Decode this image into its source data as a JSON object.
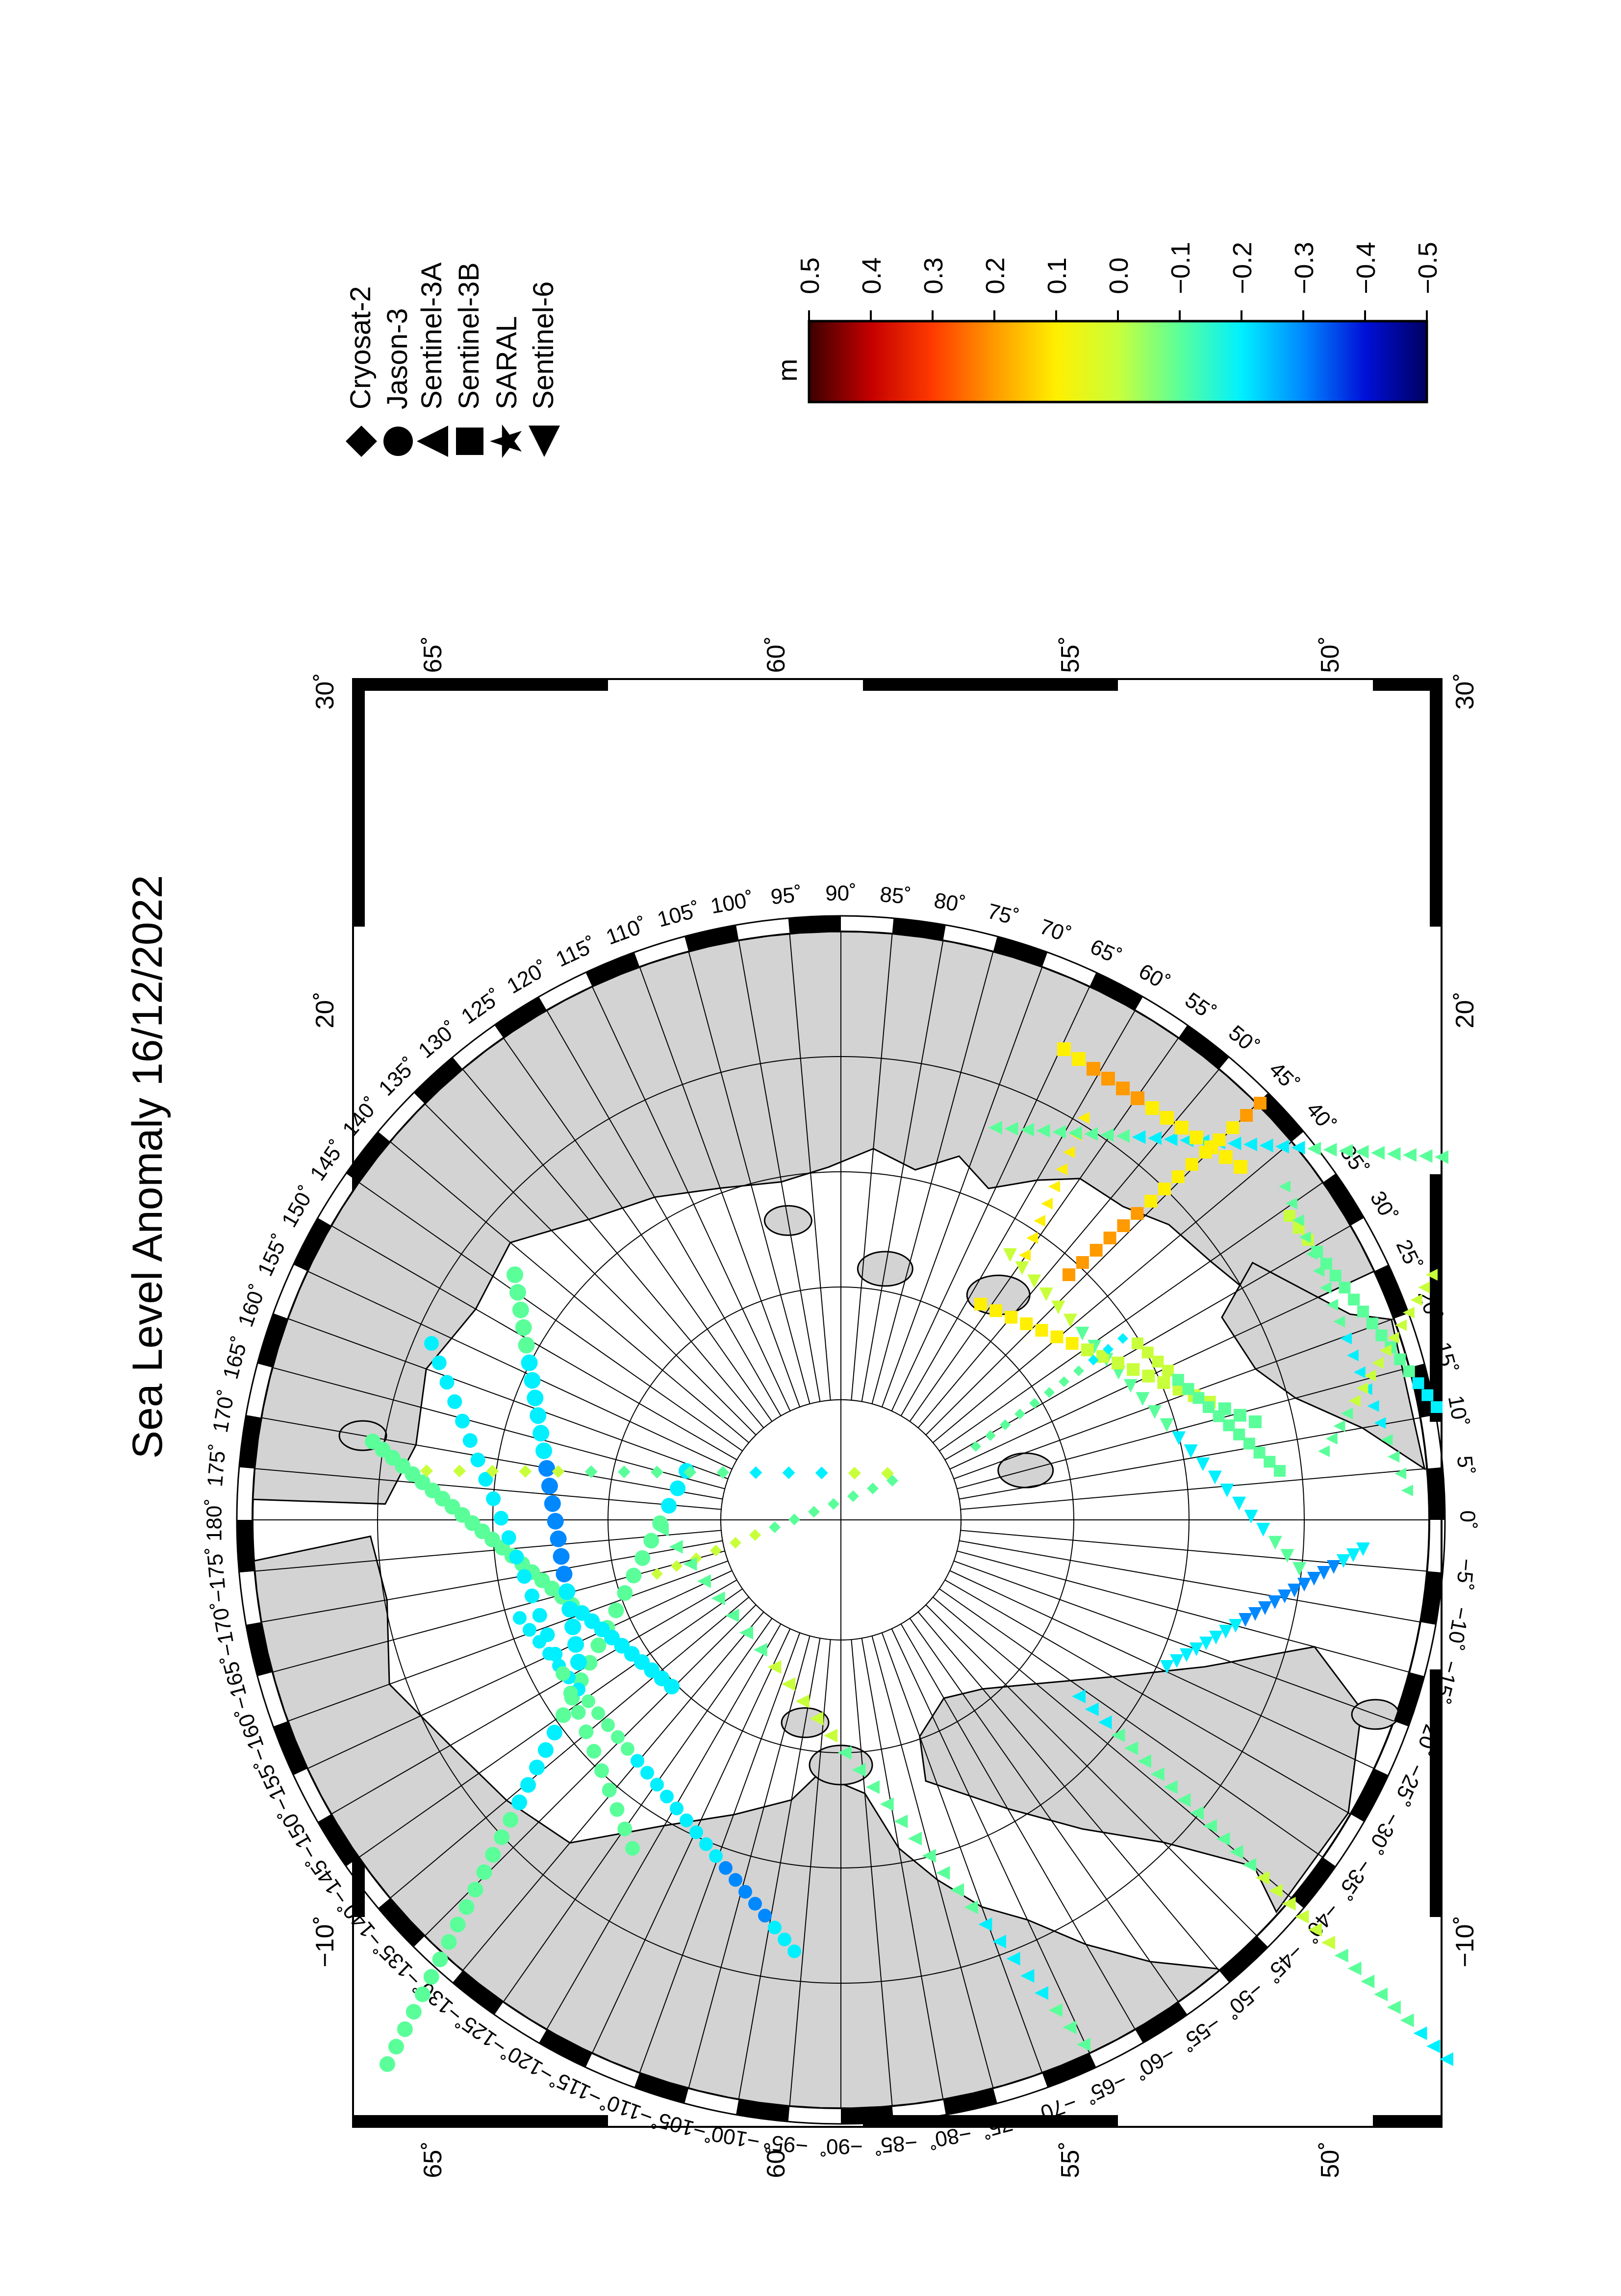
{
  "title": "Sea Level Anomaly 16/12/2022",
  "colors": {
    "land": "#d3d3d3",
    "ocean": "#ffffff",
    "frame": "#000000",
    "colorscale": [
      "#3b0000",
      "#c40000",
      "#ff3a00",
      "#ff9a00",
      "#ffef00",
      "#c8ff3a",
      "#5aff9a",
      "#00f0ff",
      "#0088ff",
      "#0010d8",
      "#000060"
    ]
  },
  "legend": {
    "items": [
      {
        "label": "Cryosat-2",
        "marker": "diamond-icon"
      },
      {
        "label": "Jason-3",
        "marker": "circle-icon"
      },
      {
        "label": "Sentinel-3A",
        "marker": "triangle-icon"
      },
      {
        "label": "Sentinel-3B",
        "marker": "square-icon"
      },
      {
        "label": "SARAL",
        "marker": "star-icon"
      },
      {
        "label": "Sentinel-6",
        "marker": "triangle-right-icon"
      }
    ]
  },
  "colorbar": {
    "unit": "m",
    "ticks": [
      "0.5",
      "0.4",
      "0.3",
      "0.2",
      "0.1",
      "0.0",
      "−0.1",
      "−0.2",
      "−0.3",
      "−0.4",
      "−0.5"
    ]
  },
  "map": {
    "frame_top_ticks": [
      "30˚",
      "20˚",
      "−10˚"
    ],
    "frame_bottom_ticks": [
      "30˚",
      "20˚",
      "−10˚"
    ],
    "frame_left_ticks": [
      "65˚",
      "60˚",
      "55˚",
      "50˚"
    ],
    "frame_right_ticks": [
      "65˚",
      "60˚",
      "55˚",
      "50˚"
    ],
    "longitude_labels": [
      "90˚",
      "85˚",
      "80˚",
      "75˚",
      "70˚",
      "65˚",
      "60˚",
      "55˚",
      "50˚",
      "45˚",
      "40˚",
      "35˚",
      "30˚",
      "25˚",
      "20˚",
      "15˚",
      "10˚",
      "5˚",
      "0˚",
      "−5˚",
      "−10˚",
      "−15˚",
      "−20˚",
      "−25˚",
      "−30˚",
      "−35˚",
      "−40˚",
      "−45˚",
      "−50˚",
      "−55˚",
      "−60˚",
      "−65˚",
      "−70˚",
      "−75˚",
      "−80˚",
      "−85˚",
      "−90˚",
      "−95˚",
      "−100˚",
      "−105˚",
      "−110˚",
      "−115˚",
      "−120˚",
      "−125˚",
      "−130˚",
      "−135˚",
      "−140˚",
      "−145˚",
      "−150˚",
      "−155˚",
      "−160˚",
      "−165˚",
      "−170˚",
      "−175˚",
      "180˚",
      "175˚",
      "170˚",
      "165˚",
      "160˚",
      "155˚",
      "150˚",
      "145˚",
      "140˚",
      "135˚",
      "130˚",
      "125˚",
      "120˚",
      "115˚",
      "110˚",
      "105˚",
      "100˚",
      "95˚"
    ]
  }
}
